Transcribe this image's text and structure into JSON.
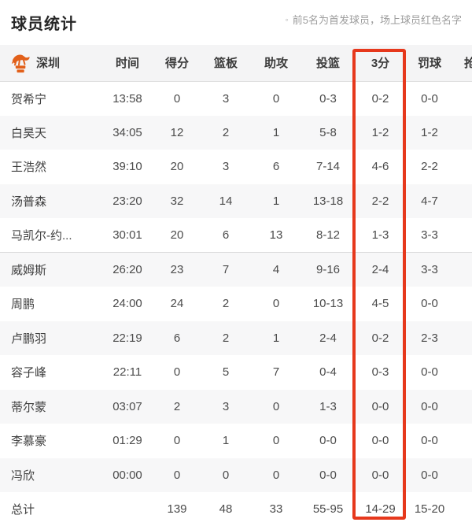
{
  "header": {
    "title": "球员统计",
    "note_bullet": "◦",
    "note": "前5名为首发球员，场上球员红色名字"
  },
  "team": {
    "name": "深圳",
    "logo_icon": "leopard-logo-icon",
    "logo_color": "#e2601a"
  },
  "table": {
    "columns": [
      {
        "key": "time",
        "label": "时间"
      },
      {
        "key": "points",
        "label": "得分"
      },
      {
        "key": "rebounds",
        "label": "篮板"
      },
      {
        "key": "assists",
        "label": "助攻"
      },
      {
        "key": "fg",
        "label": "投篮"
      },
      {
        "key": "3pt",
        "label": "3分"
      },
      {
        "key": "ft",
        "label": "罚球"
      },
      {
        "key": "steals",
        "label": "抢断"
      }
    ],
    "highlight_column": "3分",
    "starters_count": 5,
    "rows": [
      [
        "贺希宁",
        "13:58",
        "0",
        "3",
        "0",
        "0-3",
        "0-2",
        "0-0"
      ],
      [
        "白昊天",
        "34:05",
        "12",
        "2",
        "1",
        "5-8",
        "1-2",
        "1-2"
      ],
      [
        "王浩然",
        "39:10",
        "20",
        "3",
        "6",
        "7-14",
        "4-6",
        "2-2"
      ],
      [
        "汤普森",
        "23:20",
        "32",
        "14",
        "1",
        "13-18",
        "2-2",
        "4-7"
      ],
      [
        "马凯尔-约...",
        "30:01",
        "20",
        "6",
        "13",
        "8-12",
        "1-3",
        "3-3"
      ],
      [
        "威姆斯",
        "26:20",
        "23",
        "7",
        "4",
        "9-16",
        "2-4",
        "3-3"
      ],
      [
        "周鹏",
        "24:00",
        "24",
        "2",
        "0",
        "10-13",
        "4-5",
        "0-0"
      ],
      [
        "卢鹏羽",
        "22:19",
        "6",
        "2",
        "1",
        "2-4",
        "0-2",
        "2-3"
      ],
      [
        "容子峰",
        "22:11",
        "0",
        "5",
        "7",
        "0-4",
        "0-3",
        "0-0"
      ],
      [
        "蒂尔蒙",
        "03:07",
        "2",
        "3",
        "0",
        "1-3",
        "0-0",
        "0-0"
      ],
      [
        "李慕豪",
        "01:29",
        "0",
        "1",
        "0",
        "0-0",
        "0-0",
        "0-0"
      ],
      [
        "冯欣",
        "00:00",
        "0",
        "0",
        "0",
        "0-0",
        "0-0",
        "0-0"
      ],
      [
        "总计",
        "",
        "139",
        "48",
        "33",
        "55-95",
        "14-29",
        "15-20"
      ]
    ]
  },
  "colors": {
    "highlight_red": "#e6381c",
    "logo_orange": "#e2601a",
    "header_bg": "#f4f4f5",
    "stripe_bg": "#f7f7f8",
    "title_text": "#262626",
    "cell_text": "#4b4b4b",
    "note_text": "#9c9c9c"
  }
}
